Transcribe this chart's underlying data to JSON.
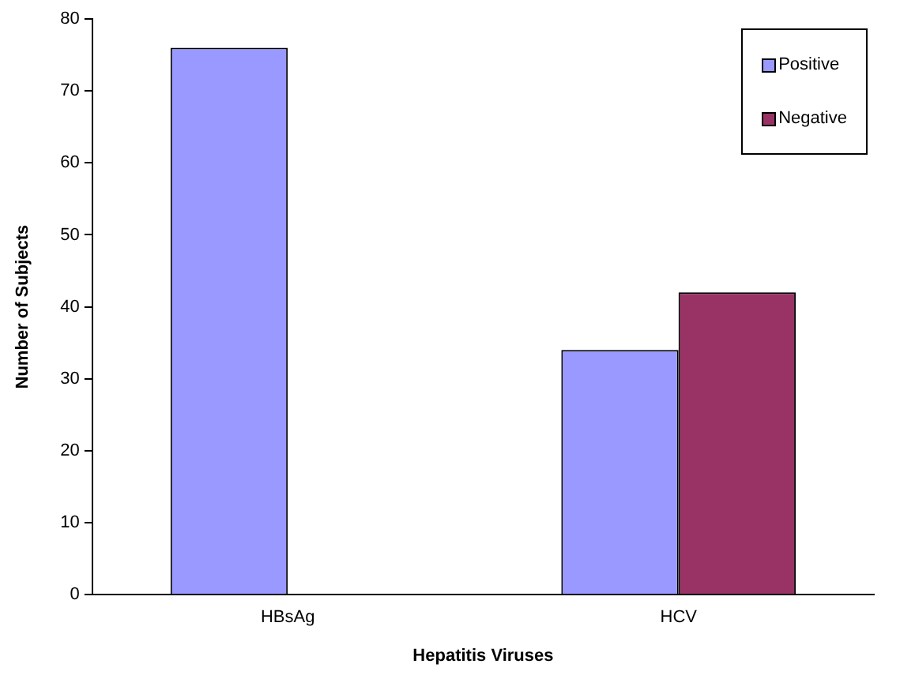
{
  "chart_data": {
    "type": "bar",
    "xlabel": "Hepatitis Viruses",
    "ylabel": "Number of Subjects",
    "categories": [
      "HBsAg",
      "HCV"
    ],
    "series": [
      {
        "name": "Positive",
        "color": "#9999ff",
        "values": [
          76,
          34
        ]
      },
      {
        "name": "Negative",
        "color": "#993366",
        "values": [
          null,
          42
        ]
      }
    ],
    "ylim": [
      0,
      80
    ],
    "yticks": [
      0,
      10,
      20,
      30,
      40,
      50,
      60,
      70,
      80
    ],
    "grid": false,
    "legend": "top right"
  }
}
